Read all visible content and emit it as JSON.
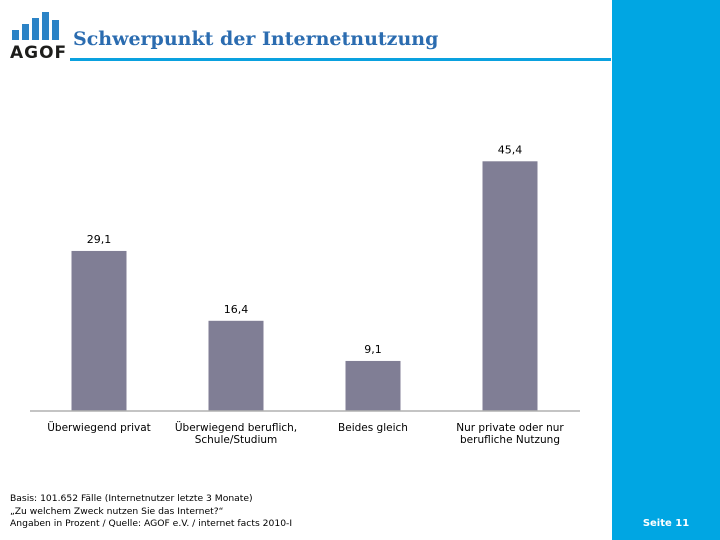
{
  "header": {
    "logo_text": "AGOF",
    "title": "Schwerpunkt der Internetnutzung"
  },
  "colors": {
    "bar": "#807e95",
    "accent": "#00a6e3",
    "title": "#2b6cb0"
  },
  "chart_data": {
    "type": "bar",
    "title": "",
    "xlabel": "",
    "ylabel": "",
    "ylim": [
      0,
      50
    ],
    "grid": false,
    "legend": "none",
    "categories": [
      [
        "Überwiegend privat"
      ],
      [
        "Überwiegend beruflich,",
        "Schule/Studium"
      ],
      [
        "Beides gleich"
      ],
      [
        "Nur private oder nur",
        "berufliche Nutzung"
      ]
    ],
    "values": [
      29.1,
      16.4,
      9.1,
      45.4
    ],
    "value_labels": [
      "29,1",
      "16,4",
      "9,1",
      "45,4"
    ]
  },
  "footnote": {
    "lines": [
      "Basis: 101.652 Fälle (Internetnutzer letzte 3 Monate)",
      "„Zu welchem Zweck nutzen Sie das Internet?“",
      "Angaben in Prozent / Quelle: AGOF e.V. / internet facts 2010-I"
    ]
  },
  "page": {
    "label": "Seite 11"
  }
}
